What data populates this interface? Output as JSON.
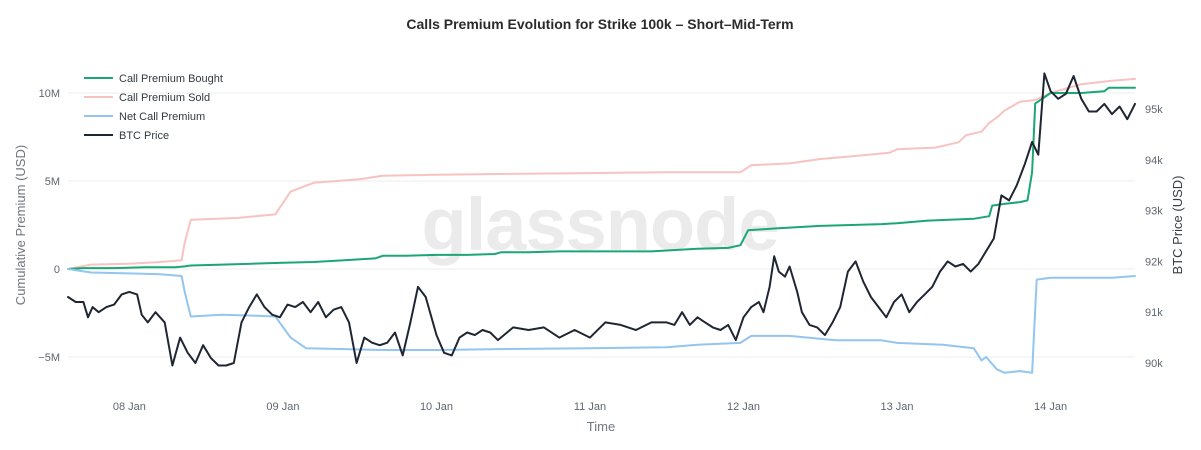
{
  "chart_data": {
    "type": "line",
    "title": "Calls Premium Evolution for Strike 100k – Short–Mid-Term",
    "xlabel": "Time",
    "ylabel_left": "Cumulative Premium (USD)",
    "ylabel_right": "BTC Price (USD)",
    "watermark": "glassnode",
    "x_range": [
      7.6,
      14.55
    ],
    "x_ticks": [
      {
        "value": 8,
        "label": "08 Jan"
      },
      {
        "value": 9,
        "label": "09 Jan"
      },
      {
        "value": 10,
        "label": "10 Jan"
      },
      {
        "value": 11,
        "label": "11 Jan"
      },
      {
        "value": 12,
        "label": "12 Jan"
      },
      {
        "value": 13,
        "label": "13 Jan"
      },
      {
        "value": 14,
        "label": "14 Jan"
      }
    ],
    "y_left_range": [
      -6.5,
      12.5
    ],
    "y_left_ticks": [
      {
        "value": 10,
        "label": "10M"
      },
      {
        "value": 5,
        "label": "5M"
      },
      {
        "value": 0,
        "label": "0"
      },
      {
        "value": -5,
        "label": "−5M"
      }
    ],
    "y_right_range": [
      89.67,
      95.95
    ],
    "y_right_ticks": [
      {
        "value": 95,
        "label": "95k"
      },
      {
        "value": 94,
        "label": "94k"
      },
      {
        "value": 93,
        "label": "93k"
      },
      {
        "value": 92,
        "label": "92k"
      },
      {
        "value": 91,
        "label": "91k"
      },
      {
        "value": 90,
        "label": "90k"
      }
    ],
    "legend_position": "top-left",
    "series": [
      {
        "name": "Call Premium Bought",
        "axis": "left",
        "color": "#1aa774",
        "x": [
          7.6,
          7.7,
          7.9,
          8.1,
          8.3,
          8.36,
          8.4,
          8.6,
          8.8,
          9.0,
          9.2,
          9.4,
          9.6,
          9.65,
          9.8,
          10.0,
          10.2,
          10.38,
          10.42,
          10.6,
          10.8,
          11.0,
          11.2,
          11.4,
          11.6,
          11.7,
          11.9,
          11.98,
          12.03,
          12.2,
          12.3,
          12.5,
          12.7,
          12.9,
          13.0,
          13.2,
          13.5,
          13.6,
          13.62,
          13.7,
          13.8,
          13.85,
          13.88,
          13.9,
          14.0,
          14.2,
          14.35,
          14.38,
          14.55
        ],
        "values": [
          0,
          0.05,
          0.05,
          0.1,
          0.1,
          0.15,
          0.2,
          0.25,
          0.3,
          0.35,
          0.4,
          0.5,
          0.6,
          0.75,
          0.75,
          0.8,
          0.8,
          0.85,
          0.95,
          0.95,
          1.0,
          1.0,
          1.0,
          1.0,
          1.1,
          1.15,
          1.2,
          1.35,
          2.2,
          2.3,
          2.35,
          2.45,
          2.5,
          2.55,
          2.6,
          2.75,
          2.85,
          3.0,
          3.6,
          3.7,
          3.8,
          3.9,
          5.5,
          9.4,
          10.0,
          10.0,
          10.1,
          10.3,
          10.3
        ]
      },
      {
        "name": "Call Premium Sold",
        "axis": "left",
        "color": "#f7c3c1",
        "x": [
          7.6,
          7.75,
          8.0,
          8.2,
          8.34,
          8.36,
          8.4,
          8.7,
          8.95,
          9.05,
          9.2,
          9.5,
          9.65,
          10.0,
          10.4,
          11.0,
          11.5,
          11.98,
          12.05,
          12.3,
          12.5,
          12.7,
          12.95,
          13.0,
          13.25,
          13.4,
          13.45,
          13.55,
          13.6,
          13.65,
          13.7,
          13.8,
          13.9,
          14.0,
          14.2,
          14.4,
          14.55
        ],
        "values": [
          0,
          0.25,
          0.3,
          0.4,
          0.5,
          1.5,
          2.8,
          2.9,
          3.1,
          4.4,
          4.9,
          5.1,
          5.3,
          5.35,
          5.4,
          5.45,
          5.5,
          5.5,
          5.9,
          6.0,
          6.25,
          6.4,
          6.6,
          6.8,
          6.9,
          7.2,
          7.6,
          7.8,
          8.3,
          8.6,
          9.0,
          9.5,
          9.6,
          10.0,
          10.5,
          10.7,
          10.8
        ]
      },
      {
        "name": "Net Call Premium",
        "axis": "left",
        "color": "#92c5f0",
        "x": [
          7.6,
          7.75,
          8.0,
          8.2,
          8.34,
          8.36,
          8.4,
          8.6,
          8.8,
          8.95,
          9.05,
          9.15,
          9.4,
          9.65,
          10.0,
          10.4,
          11.0,
          11.5,
          11.7,
          11.98,
          12.05,
          12.3,
          12.6,
          12.9,
          13.0,
          13.3,
          13.5,
          13.55,
          13.58,
          13.65,
          13.7,
          13.8,
          13.88,
          13.91,
          14.0,
          14.2,
          14.4,
          14.55
        ],
        "values": [
          0,
          -0.2,
          -0.25,
          -0.3,
          -0.4,
          -1.3,
          -2.7,
          -2.6,
          -2.65,
          -2.7,
          -3.9,
          -4.5,
          -4.55,
          -4.6,
          -4.6,
          -4.55,
          -4.5,
          -4.45,
          -4.3,
          -4.2,
          -3.8,
          -3.8,
          -4.05,
          -4.05,
          -4.2,
          -4.3,
          -4.5,
          -5.2,
          -5.0,
          -5.7,
          -5.9,
          -5.8,
          -5.9,
          -0.6,
          -0.5,
          -0.5,
          -0.5,
          -0.4
        ]
      },
      {
        "name": "BTC Price",
        "axis": "right",
        "color": "#1f2633",
        "x": [
          7.6,
          7.65,
          7.7,
          7.73,
          7.76,
          7.8,
          7.85,
          7.9,
          7.95,
          8.0,
          8.05,
          8.08,
          8.12,
          8.17,
          8.23,
          8.28,
          8.33,
          8.38,
          8.43,
          8.48,
          8.53,
          8.58,
          8.63,
          8.68,
          8.73,
          8.78,
          8.83,
          8.88,
          8.93,
          8.98,
          9.03,
          9.08,
          9.13,
          9.18,
          9.23,
          9.28,
          9.33,
          9.38,
          9.43,
          9.48,
          9.53,
          9.58,
          9.63,
          9.68,
          9.73,
          9.78,
          9.83,
          9.88,
          9.93,
          10.0,
          10.05,
          10.1,
          10.15,
          10.2,
          10.25,
          10.3,
          10.35,
          10.4,
          10.5,
          10.6,
          10.7,
          10.8,
          10.9,
          11.0,
          11.1,
          11.2,
          11.3,
          11.4,
          11.5,
          11.55,
          11.6,
          11.65,
          11.7,
          11.75,
          11.8,
          11.85,
          11.9,
          11.95,
          12.0,
          12.05,
          12.1,
          12.13,
          12.17,
          12.2,
          12.23,
          12.27,
          12.3,
          12.35,
          12.38,
          12.43,
          12.48,
          12.53,
          12.58,
          12.63,
          12.68,
          12.73,
          12.78,
          12.83,
          12.88,
          12.93,
          12.98,
          13.03,
          13.08,
          13.13,
          13.18,
          13.23,
          13.28,
          13.33,
          13.38,
          13.43,
          13.48,
          13.53,
          13.58,
          13.63,
          13.68,
          13.73,
          13.78,
          13.83,
          13.88,
          13.92,
          13.96,
          14.0,
          14.05,
          14.1,
          14.15,
          14.2,
          14.25,
          14.3,
          14.35,
          14.4,
          14.45,
          14.5,
          14.55
        ],
        "values": [
          91.3,
          91.2,
          91.2,
          90.9,
          91.1,
          91.0,
          91.1,
          91.15,
          91.35,
          91.4,
          91.35,
          90.95,
          90.8,
          91.0,
          90.8,
          89.95,
          90.5,
          90.2,
          90.0,
          90.35,
          90.1,
          89.95,
          89.95,
          90.0,
          90.8,
          91.1,
          91.35,
          91.1,
          90.95,
          90.9,
          91.15,
          91.1,
          91.2,
          91.0,
          91.2,
          90.9,
          91.05,
          91.1,
          90.8,
          90.0,
          90.5,
          90.4,
          90.35,
          90.4,
          90.6,
          90.15,
          90.8,
          91.5,
          91.3,
          90.55,
          90.2,
          90.15,
          90.5,
          90.6,
          90.55,
          90.65,
          90.6,
          90.45,
          90.7,
          90.65,
          90.7,
          90.5,
          90.65,
          90.5,
          90.8,
          90.75,
          90.65,
          90.8,
          90.8,
          90.75,
          91.0,
          90.75,
          90.9,
          90.8,
          90.7,
          90.65,
          90.75,
          90.45,
          90.9,
          91.1,
          91.2,
          91.0,
          91.5,
          92.1,
          91.8,
          91.7,
          91.9,
          91.4,
          91.0,
          90.75,
          90.7,
          90.55,
          90.8,
          91.1,
          91.8,
          92.0,
          91.6,
          91.3,
          91.1,
          90.9,
          91.2,
          91.35,
          91.0,
          91.2,
          91.35,
          91.5,
          91.8,
          92.0,
          91.9,
          91.95,
          91.8,
          91.95,
          92.2,
          92.45,
          93.3,
          93.2,
          93.5,
          93.9,
          94.35,
          94.1,
          95.7,
          95.35,
          95.2,
          95.3,
          95.65,
          95.2,
          94.95,
          94.95,
          95.1,
          94.9,
          95.05,
          94.8,
          95.1
        ]
      }
    ]
  }
}
